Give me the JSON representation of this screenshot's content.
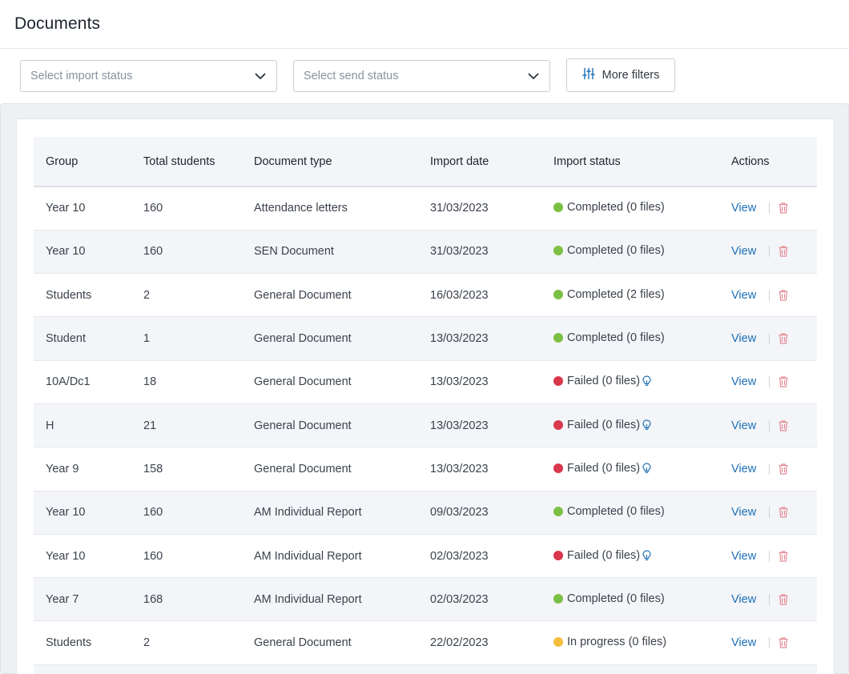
{
  "page": {
    "title": "Documents"
  },
  "filters": {
    "import_status_placeholder": "Select import status",
    "send_status_placeholder": "Select send status",
    "more_filters_label": "More filters"
  },
  "table": {
    "columns": [
      "Group",
      "Total students",
      "Document type",
      "Import date",
      "Import status",
      "Actions"
    ],
    "action_view_label": "View",
    "rows": [
      {
        "group": "Year 10",
        "total": "160",
        "doc_type": "Attendance letters",
        "date": "31/03/2023",
        "status": "Completed (0 files)",
        "state": "completed"
      },
      {
        "group": "Year 10",
        "total": "160",
        "doc_type": "SEN Document",
        "date": "31/03/2023",
        "status": "Completed (0 files)",
        "state": "completed"
      },
      {
        "group": "Students",
        "total": "2",
        "doc_type": "General Document",
        "date": "16/03/2023",
        "status": "Completed (2 files)",
        "state": "completed"
      },
      {
        "group": "Student",
        "total": "1",
        "doc_type": "General Document",
        "date": "13/03/2023",
        "status": "Completed (0 files)",
        "state": "completed"
      },
      {
        "group": "10A/Dc1",
        "total": "18",
        "doc_type": "General Document",
        "date": "13/03/2023",
        "status": "Failed (0 files)",
        "state": "failed"
      },
      {
        "group": "H",
        "total": "21",
        "doc_type": "General Document",
        "date": "13/03/2023",
        "status": "Failed (0 files)",
        "state": "failed"
      },
      {
        "group": "Year 9",
        "total": "158",
        "doc_type": "General Document",
        "date": "13/03/2023",
        "status": "Failed (0 files)",
        "state": "failed"
      },
      {
        "group": "Year 10",
        "total": "160",
        "doc_type": "AM Individual Report",
        "date": "09/03/2023",
        "status": "Completed (0 files)",
        "state": "completed"
      },
      {
        "group": "Year 10",
        "total": "160",
        "doc_type": "AM Individual Report",
        "date": "02/03/2023",
        "status": "Failed (0 files)",
        "state": "failed"
      },
      {
        "group": "Year 7",
        "total": "168",
        "doc_type": "AM Individual Report",
        "date": "02/03/2023",
        "status": "Completed (0 files)",
        "state": "completed"
      },
      {
        "group": "Students",
        "total": "2",
        "doc_type": "General Document",
        "date": "22/02/2023",
        "status": "In progress (0 files)",
        "state": "in_progress"
      }
    ]
  },
  "icons": {
    "chevron": "chevron-down-icon",
    "filters": "sliders-icon",
    "hint": "lightbulb-icon",
    "delete": "trash-icon"
  },
  "colors": {
    "completed": "#7cbf45",
    "failed": "#d9374b",
    "in_progress": "#f5be3b",
    "link": "#1d6fb8",
    "delete": "#e58a95"
  }
}
